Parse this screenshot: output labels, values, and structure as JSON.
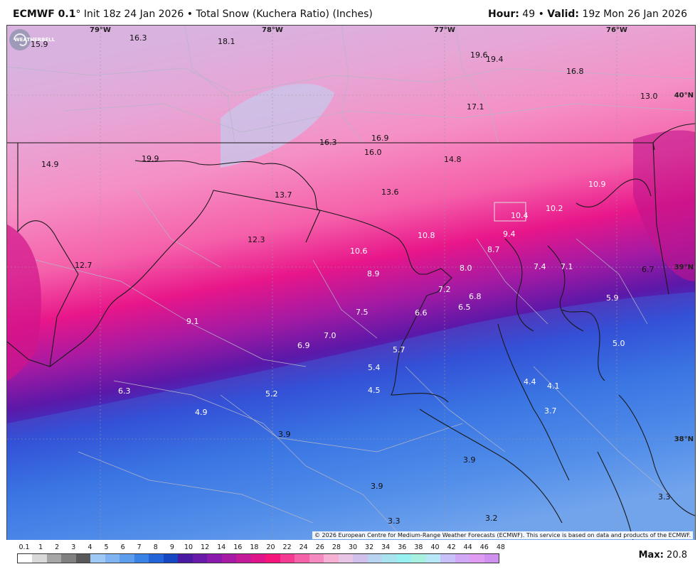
{
  "header": {
    "model": "ECMWF 0.1",
    "degree": "°",
    "init": "Init 18z 24 Jan 2026",
    "bullet": "•",
    "product": "Total Snow (Kuchera Ratio) (Inches)",
    "hour_label": "Hour:",
    "hour_value": "49",
    "valid_label": "Valid:",
    "valid_value": "19z Mon 26 Jan 2026"
  },
  "coords": {
    "lon": [
      "79°W",
      "78°W",
      "77°W",
      "76°W"
    ],
    "lat": [
      "40°N",
      "39°N",
      "38°N"
    ]
  },
  "snow_values": [
    "15.9",
    "16.3",
    "18.1",
    "19.6",
    "19.4",
    "16.8",
    "13.0",
    "17.1",
    "16.9",
    "16.3",
    "16.0",
    "14.8",
    "14.9",
    "19.9",
    "13.7",
    "13.6",
    "10.9",
    "10.4",
    "10.2",
    "10.8",
    "9.4",
    "12.3",
    "10.6",
    "8.7",
    "12.7",
    "8.9",
    "8.0",
    "7.4",
    "7.1",
    "6.7",
    "7.2",
    "6.8",
    "6.5",
    "5.9",
    "7.5",
    "6.6",
    "9.1",
    "7.0",
    "6.9",
    "5.7",
    "5.0",
    "5.4",
    "4.4",
    "4.1",
    "6.3",
    "4.5",
    "5.2",
    "4.9",
    "3.7",
    "3.9",
    "3.9",
    "3.9",
    "3.3",
    "3.3",
    "3.2"
  ],
  "copyright": "© 2026 European Centre for Medium-Range Weather Forecasts (ECMWF). This service is based on data and products of the ECMWF.",
  "legend": {
    "ticks": [
      "0.1",
      "1",
      "2",
      "3",
      "4",
      "5",
      "6",
      "7",
      "8",
      "9",
      "10",
      "12",
      "14",
      "16",
      "18",
      "20",
      "22",
      "24",
      "26",
      "28",
      "30",
      "32",
      "34",
      "36",
      "38",
      "40",
      "42",
      "44",
      "46",
      "48"
    ],
    "colors": [
      "#ffffff",
      "#d9d9d9",
      "#a6a6a6",
      "#808080",
      "#595959",
      "#9ec9f7",
      "#7fb3f2",
      "#5e9ded",
      "#3b82e6",
      "#2563d9",
      "#1746c2",
      "#4b1aa3",
      "#6a1aa8",
      "#8a1aad",
      "#a61aa6",
      "#c21a99",
      "#e0148a",
      "#f5147a",
      "#f53a93",
      "#f562aa",
      "#f58ac0",
      "#f5b0d4",
      "#e8c4e6",
      "#d0c0ec",
      "#b8d4f0",
      "#a8e4f0",
      "#98f0f0",
      "#a8f0e0",
      "#b8e8f8",
      "#c8c0f8",
      "#d0a8f5",
      "#e09cf2",
      "#d090f0"
    ],
    "max_label": "Max:",
    "max_value": "20.8"
  },
  "logo_text": "WEATHERBELL"
}
